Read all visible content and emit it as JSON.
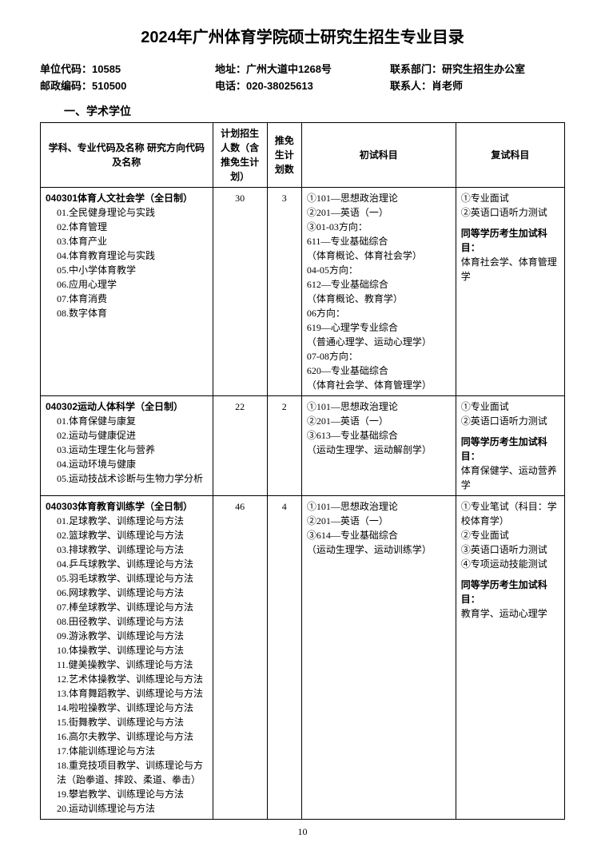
{
  "title": "2024年广州体育学院硕士研究生招生专业目录",
  "header": {
    "unit_code_label": "单位代码：",
    "unit_code": "10585",
    "postal_label": "邮政编码：",
    "postal": "510500",
    "address_label": "地址：",
    "address": "广州大道中1268号",
    "phone_label": "电话：",
    "phone": "020-38025613",
    "dept_label": "联系部门：",
    "dept": "研究生招生办公室",
    "contact_label": "联系人：",
    "contact": "肖老师"
  },
  "section1": "一、学术学位",
  "table": {
    "headers": {
      "major": "学科、专业代码及名称\n研究方向代码及名称",
      "plan": "计划招生人数（含推免生计划）",
      "rec": "推免生计划数",
      "exam1": "初试科目",
      "exam2": "复试科目"
    },
    "rows": [
      {
        "major_code": "040301体育人文社会学（全日制）",
        "directions": [
          "01.全民健身理论与实践",
          "02.体育管理",
          "03.体育产业",
          "04.体育教育理论与实践",
          "05.中小学体育教学",
          "06.应用心理学",
          "07.体育消费",
          "08.数字体育"
        ],
        "plan": "30",
        "rec": "3",
        "exam1_lines": [
          "①101—思想政治理论",
          "②201—英语（一）",
          "③01-03方向：",
          "611—专业基础综合",
          "（体育概论、体育社会学）",
          "04-05方向：",
          "612—专业基础综合",
          "（体育概论、教育学）",
          "06方向：",
          "619—心理学专业综合",
          "（普通心理学、运动心理学）",
          "07-08方向：",
          "620—专业基础综合",
          "（体育社会学、体育管理学）"
        ],
        "exam2_plain": [
          "①专业面试",
          "②英语口语听力测试"
        ],
        "exam2_bold": "同等学历考生加试科目：",
        "exam2_tail": "体育社会学、体育管理学"
      },
      {
        "major_code": "040302运动人体科学（全日制）",
        "directions": [
          "01.体育保健与康复",
          "02.运动与健康促进",
          "03.运动生理生化与营养",
          "04.运动环境与健康",
          "05.运动技战术诊断与生物力学分析"
        ],
        "plan": "22",
        "rec": "2",
        "exam1_lines": [
          "①101—思想政治理论",
          "②201—英语（一）",
          "③613—专业基础综合",
          "（运动生理学、运动解剖学）"
        ],
        "exam2_plain": [
          "①专业面试",
          "②英语口语听力测试"
        ],
        "exam2_bold": "同等学历考生加试科目：",
        "exam2_tail": "体育保健学、运动营养学"
      },
      {
        "major_code": "040303体育教育训练学（全日制）",
        "directions": [
          "01.足球教学、训练理论与方法",
          "02.篮球教学、训练理论与方法",
          "03.排球教学、训练理论与方法",
          "04.乒乓球教学、训练理论与方法",
          "05.羽毛球教学、训练理论与方法",
          "06.网球教学、训练理论与方法",
          "07.棒垒球教学、训练理论与方法",
          "08.田径教学、训练理论与方法",
          "09.游泳教学、训练理论与方法",
          "10.体操教学、训练理论与方法",
          "11.健美操教学、训练理论与方法",
          "12.艺术体操教学、训练理论与方法",
          "13.体育舞蹈教学、训练理论与方法",
          "14.啦啦操教学、训练理论与方法",
          "15.街舞教学、训练理论与方法",
          "16.高尔夫教学、训练理论与方法",
          "17.体能训练理论与方法",
          "18.重竞技项目教学、训练理论与方法（跆拳道、摔跤、柔道、拳击）",
          "19.攀岩教学、训练理论与方法",
          "20.运动训练理论与方法"
        ],
        "plan": "46",
        "rec": "4",
        "exam1_lines": [
          "①101—思想政治理论",
          "②201—英语（一）",
          "③614—专业基础综合",
          "（运动生理学、运动训练学）"
        ],
        "exam2_plain": [
          "①专业笔试（科目：学校体育学）",
          "②专业面试",
          "③英语口语听力测试",
          "④专项运动技能测试"
        ],
        "exam2_bold": "同等学历考生加试科目：",
        "exam2_tail": "教育学、运动心理学"
      }
    ]
  },
  "page_num": "10"
}
